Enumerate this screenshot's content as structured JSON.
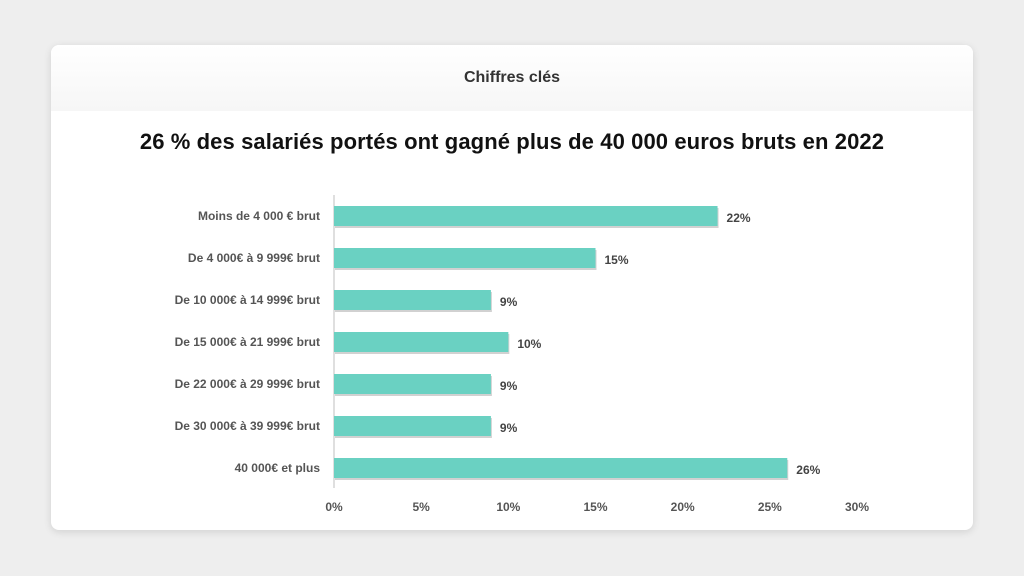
{
  "header": {
    "title": "Chiffres clés"
  },
  "colors": {
    "bar": "#6ad1c2",
    "axis": "#bfbfbf",
    "background": "#eeeeee"
  },
  "chart_data": {
    "type": "bar",
    "orientation": "horizontal",
    "title": "26 % des salariés portés ont gagné plus de 40 000 euros bruts en 2022",
    "xlabel": "",
    "ylabel": "",
    "categories": [
      "Moins de 4 000 € brut",
      "De 4 000€ à 9 999€ brut",
      "De 10 000€ à 14 999€ brut",
      "De 15 000€ à 21 999€ brut",
      "De 22 000€ à 29 999€ brut",
      "De 30 000€ à 39 999€ brut",
      "40 000€ et plus"
    ],
    "values": [
      22,
      15,
      9,
      10,
      9,
      9,
      26
    ],
    "value_labels": [
      "22%",
      "15%",
      "9%",
      "10%",
      "9%",
      "9%",
      "26%"
    ],
    "xlim": [
      0,
      30
    ],
    "x_ticks": [
      0,
      5,
      10,
      15,
      20,
      25,
      30
    ],
    "x_tick_labels": [
      "0%",
      "5%",
      "10%",
      "15%",
      "20%",
      "25%",
      "30%"
    ],
    "grid": false,
    "legend": "none"
  }
}
